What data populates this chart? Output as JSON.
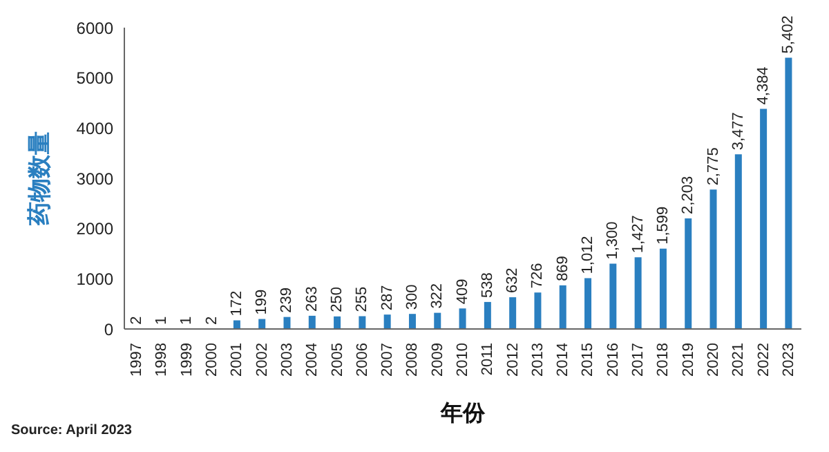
{
  "chart_data": {
    "type": "bar",
    "xlabel": "年份",
    "ylabel": "药物数量",
    "categories": [
      "1997",
      "1998",
      "1999",
      "2000",
      "2001",
      "2002",
      "2003",
      "2004",
      "2005",
      "2006",
      "2007",
      "2008",
      "2009",
      "2010",
      "2011",
      "2012",
      "2013",
      "2014",
      "2015",
      "2016",
      "2017",
      "2018",
      "2019",
      "2020",
      "2021",
      "2022",
      "2023"
    ],
    "values": [
      2,
      1,
      1,
      2,
      172,
      199,
      239,
      263,
      250,
      255,
      287,
      300,
      322,
      409,
      538,
      632,
      726,
      869,
      1012,
      1300,
      1427,
      1599,
      2203,
      2775,
      3477,
      4384,
      5402
    ],
    "value_labels": [
      "2",
      "1",
      "1",
      "2",
      "172",
      "199",
      "239",
      "263",
      "250",
      "255",
      "287",
      "300",
      "322",
      "409",
      "538",
      "632",
      "726",
      "869",
      "1,012",
      "1,300",
      "1,427",
      "1,599",
      "2,203",
      "2,775",
      "3,477",
      "4,384",
      "5,402"
    ],
    "color": "#2a7fc0",
    "ylim": [
      0,
      6000
    ],
    "yticks": [
      0,
      1000,
      2000,
      3000,
      4000,
      5000,
      6000
    ],
    "grid": false,
    "annotations": [
      "Source: April 2023"
    ]
  }
}
